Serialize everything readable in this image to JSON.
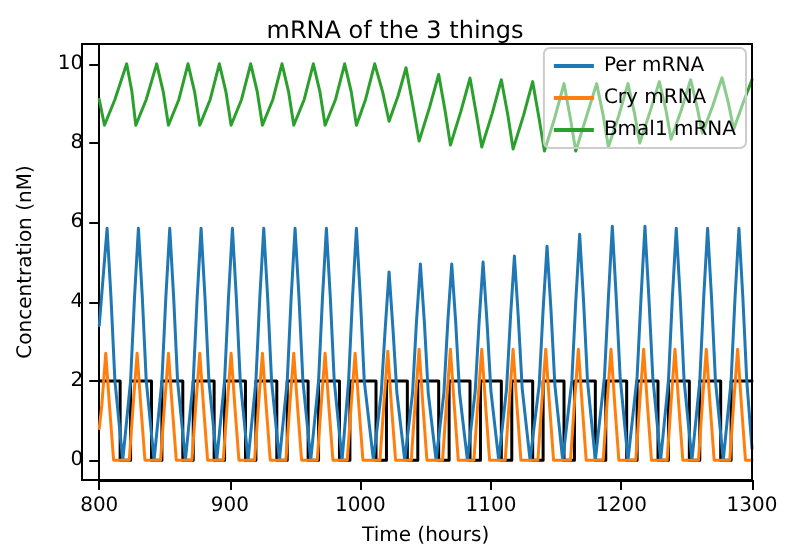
{
  "chart_data": {
    "type": "line",
    "title": "mRNA of the 3 things",
    "xlabel": "Time (hours)",
    "ylabel": "Concentration (nM)",
    "xlim": [
      800,
      1300
    ],
    "xticks": [
      800,
      900,
      1000,
      1100,
      1200,
      1300
    ],
    "ylim": [
      -0.5,
      10.5
    ],
    "yticks": [
      0,
      2,
      4,
      6,
      8,
      10
    ],
    "grid": false,
    "legend": "top right",
    "marker": "none",
    "line_style": "solid",
    "series": [
      {
        "name": "Per mRNA",
        "color": "#1f77b4",
        "x": [
          800,
          806,
          809,
          812,
          818,
          824,
          827,
          830,
          833,
          836,
          842,
          848,
          851,
          854,
          857,
          860,
          866,
          872,
          875,
          878,
          881,
          884,
          890,
          896,
          899,
          902,
          905,
          908,
          914,
          920,
          923,
          926,
          929,
          932,
          938,
          944,
          947,
          950,
          953,
          956,
          962,
          968,
          971,
          974,
          977,
          980,
          986,
          991,
          994,
          997,
          1000,
          1003,
          1010,
          1016,
          1019,
          1022,
          1025,
          1028,
          1034,
          1040,
          1043,
          1046,
          1049,
          1052,
          1058,
          1064,
          1067,
          1070,
          1073,
          1076,
          1082,
          1088,
          1091,
          1094,
          1097,
          1100,
          1106,
          1112,
          1115,
          1118,
          1121,
          1124,
          1130,
          1137,
          1140,
          1143,
          1146,
          1149,
          1155,
          1162,
          1165,
          1168,
          1171,
          1174,
          1180,
          1187,
          1190,
          1193,
          1196,
          1199,
          1205,
          1212,
          1215,
          1218,
          1221,
          1224,
          1230,
          1236,
          1239,
          1242,
          1245,
          1248,
          1254,
          1260,
          1263,
          1266,
          1269,
          1272,
          1278,
          1284,
          1287,
          1290,
          1293,
          1296,
          1300
        ],
        "values": [
          3.4,
          5.85,
          4.1,
          2.0,
          0,
          2.0,
          4.1,
          5.85,
          4.1,
          2.0,
          0,
          2.0,
          4.1,
          5.85,
          4.1,
          2.0,
          0,
          2.0,
          4.1,
          5.85,
          4.1,
          2.0,
          0,
          2.0,
          4.1,
          5.85,
          4.1,
          2.0,
          0,
          2.0,
          4.1,
          5.85,
          4.1,
          2.0,
          0,
          2.0,
          4.1,
          5.85,
          4.1,
          2.0,
          0,
          2.0,
          4.1,
          5.85,
          4.1,
          2.0,
          0,
          2.0,
          4.1,
          5.85,
          4.1,
          2.0,
          0,
          1.7,
          3.3,
          4.75,
          3.3,
          1.7,
          0,
          1.7,
          3.5,
          4.95,
          3.5,
          1.7,
          0,
          1.7,
          3.5,
          4.95,
          3.5,
          1.7,
          0,
          1.75,
          3.5,
          5.0,
          3.5,
          1.75,
          0,
          1.8,
          3.6,
          5.15,
          3.6,
          1.8,
          0,
          1.9,
          3.8,
          5.4,
          3.8,
          1.9,
          0,
          2.0,
          4.0,
          5.7,
          4.0,
          2.0,
          0,
          2.1,
          4.1,
          5.9,
          4.1,
          2.1,
          0,
          2.1,
          4.1,
          5.9,
          4.1,
          2.1,
          0,
          2.0,
          4.1,
          5.85,
          4.1,
          2.0,
          0,
          2.0,
          4.1,
          5.85,
          4.1,
          2.0,
          0,
          2.0,
          4.1,
          5.85,
          4.1,
          2.0,
          0.3
        ]
      },
      {
        "name": "Cry mRNA",
        "color": "#ff7f0e",
        "x": [
          800,
          802,
          805,
          808,
          811,
          823,
          826,
          829,
          832,
          835,
          847,
          850,
          853,
          856,
          859,
          871,
          874,
          877,
          880,
          883,
          895,
          898,
          901,
          904,
          907,
          919,
          922,
          925,
          928,
          931,
          943,
          946,
          949,
          952,
          955,
          967,
          970,
          973,
          976,
          979,
          990,
          993,
          996,
          999,
          1002,
          1015,
          1018,
          1021,
          1024,
          1027,
          1039,
          1042,
          1045,
          1048,
          1051,
          1063,
          1066,
          1069,
          1072,
          1075,
          1087,
          1090,
          1093,
          1096,
          1099,
          1111,
          1114,
          1117,
          1120,
          1123,
          1136,
          1139,
          1142,
          1145,
          1148,
          1161,
          1164,
          1167,
          1170,
          1173,
          1186,
          1189,
          1192,
          1195,
          1198,
          1211,
          1214,
          1217,
          1220,
          1223,
          1235,
          1238,
          1241,
          1244,
          1247,
          1259,
          1262,
          1265,
          1268,
          1271,
          1283,
          1286,
          1289,
          1292,
          1295,
          1300
        ],
        "values": [
          0.8,
          1.4,
          2.7,
          1.3,
          0,
          0,
          1.4,
          2.7,
          1.3,
          0,
          0,
          1.4,
          2.7,
          1.3,
          0,
          0,
          1.4,
          2.7,
          1.3,
          0,
          0,
          1.4,
          2.7,
          1.3,
          0,
          0,
          1.4,
          2.7,
          1.3,
          0,
          0,
          1.4,
          2.7,
          1.3,
          0,
          0,
          1.4,
          2.7,
          1.3,
          0,
          0,
          1.4,
          2.7,
          1.3,
          0,
          0,
          1.4,
          2.75,
          1.3,
          0,
          0,
          1.45,
          2.8,
          1.35,
          0,
          0,
          1.45,
          2.8,
          1.35,
          0,
          0,
          1.45,
          2.8,
          1.35,
          0,
          0,
          1.45,
          2.8,
          1.35,
          0,
          0,
          1.45,
          2.8,
          1.35,
          0,
          0,
          1.45,
          2.8,
          1.35,
          0,
          0,
          1.45,
          2.8,
          1.35,
          0,
          0,
          1.45,
          2.8,
          1.35,
          0,
          0,
          1.45,
          2.8,
          1.35,
          0,
          0,
          1.45,
          2.8,
          1.35,
          0,
          0,
          1.45,
          2.8,
          1.35,
          0,
          0
        ]
      },
      {
        "name": "Bmal1 mRNA",
        "color": "#2ca02c",
        "x": [
          800,
          804,
          812,
          821,
          825,
          828,
          836,
          844,
          849,
          853,
          861,
          868,
          873,
          877,
          885,
          892,
          897,
          901,
          909,
          916,
          921,
          925,
          933,
          940,
          945,
          949,
          957,
          964,
          969,
          973,
          981,
          988,
          993,
          997,
          1004,
          1011,
          1017,
          1022,
          1029,
          1035,
          1040,
          1045,
          1053,
          1060,
          1065,
          1069,
          1077,
          1084,
          1089,
          1093,
          1101,
          1108,
          1113,
          1117,
          1125,
          1132,
          1137,
          1141,
          1149,
          1156,
          1161,
          1165,
          1173,
          1181,
          1186,
          1190,
          1198,
          1205,
          1210,
          1214,
          1222,
          1229,
          1234,
          1238,
          1246,
          1253,
          1258,
          1262,
          1270,
          1277,
          1282,
          1286,
          1293,
          1300
        ],
        "values": [
          9.1,
          8.45,
          9.1,
          10.0,
          9.3,
          8.45,
          9.1,
          10.0,
          9.3,
          8.45,
          9.1,
          10.0,
          9.3,
          8.45,
          9.1,
          10.0,
          9.3,
          8.45,
          9.1,
          10.0,
          9.3,
          8.45,
          9.1,
          10.0,
          9.3,
          8.45,
          9.1,
          10.0,
          9.3,
          8.45,
          9.1,
          10.0,
          9.3,
          8.45,
          9.1,
          10.0,
          9.3,
          8.55,
          9.2,
          9.9,
          9.0,
          8.05,
          8.9,
          9.73,
          8.8,
          7.95,
          8.8,
          9.64,
          8.7,
          7.9,
          8.75,
          9.6,
          8.7,
          7.85,
          8.7,
          9.55,
          8.6,
          7.8,
          8.65,
          9.5,
          8.6,
          7.8,
          8.65,
          9.5,
          8.7,
          7.9,
          8.7,
          9.5,
          8.75,
          8.0,
          8.8,
          9.55,
          8.85,
          8.1,
          8.85,
          9.6,
          8.9,
          8.25,
          8.95,
          9.65,
          9.0,
          8.35,
          9.0,
          9.6
        ]
      },
      {
        "type": "step",
        "color": "#000000",
        "x": [
          800,
          816,
          824,
          840,
          848,
          864,
          872,
          888,
          896,
          912,
          920,
          936,
          944,
          960,
          968,
          984,
          992,
          1012,
          1020,
          1036,
          1044,
          1060,
          1068,
          1084,
          1092,
          1108,
          1116,
          1132,
          1140,
          1156,
          1164,
          1180,
          1188,
          1204,
          1212,
          1228,
          1236,
          1252,
          1260,
          1276,
          1284,
          1300
        ],
        "values": [
          2,
          0,
          2,
          0,
          2,
          0,
          2,
          0,
          2,
          0,
          2,
          0,
          2,
          0,
          2,
          0,
          2,
          0,
          2,
          0,
          2,
          0,
          2,
          0,
          2,
          0,
          2,
          0,
          2,
          0,
          2,
          0,
          2,
          0,
          2,
          0,
          2,
          0,
          2,
          0,
          2,
          2
        ]
      }
    ]
  }
}
